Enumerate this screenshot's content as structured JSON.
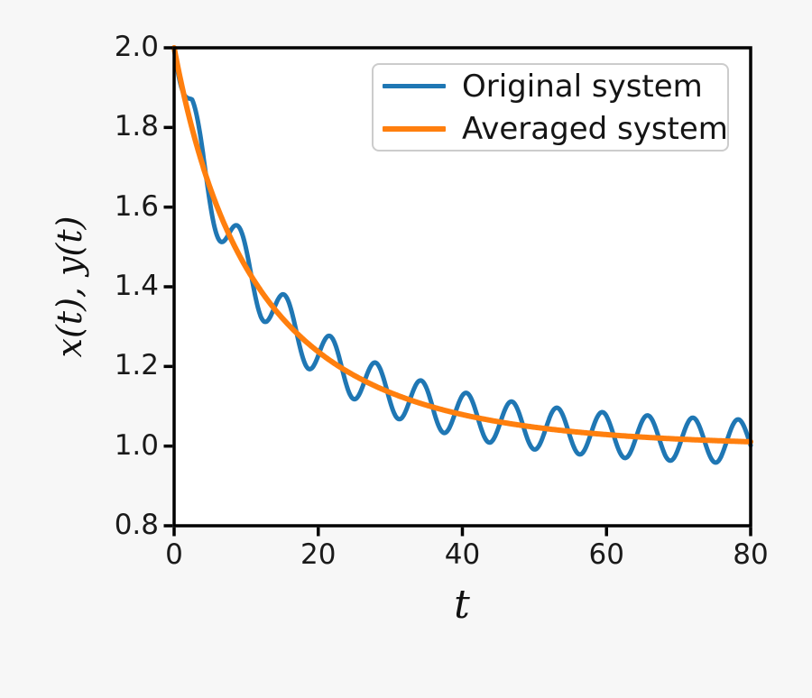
{
  "figure": {
    "background_color": "#f7f7f7",
    "plot_background_color": "#ffffff",
    "axis_color": "#000000",
    "tick_label_color": "#1a1a1a"
  },
  "chart_data": {
    "type": "line",
    "title": "",
    "xlabel": "t",
    "ylabel": "x(t), y(t)",
    "xlim": [
      0,
      80
    ],
    "ylim": [
      0.8,
      2.0
    ],
    "xticks": [
      "0",
      "20",
      "40",
      "60",
      "80"
    ],
    "yticks": [
      "0.8",
      "1.0",
      "1.2",
      "1.4",
      "1.6",
      "1.8",
      "2.0"
    ],
    "grid": false,
    "legend": {
      "position": "upper right",
      "border_color": "#cccccc",
      "background": "#ffffff"
    },
    "series": [
      {
        "name": "Original system",
        "color": "#1f77b4",
        "line_width": 5,
        "model": {
          "kind": "averaged_plus_oscillation",
          "k": 0.048,
          "amplitude": 0.055,
          "omega": 1.0,
          "phase": 1.3,
          "amp_boost": 0.5,
          "amp_boost_tau": 15,
          "onset_ramp": 2.5
        },
        "sample_t": [
          0,
          5,
          10,
          15,
          20,
          25,
          30,
          35,
          40,
          45,
          50,
          55,
          60,
          65,
          70,
          75,
          80
        ],
        "sample_y": [
          2.0,
          1.608,
          1.494,
          1.381,
          1.228,
          1.117,
          1.11,
          1.147,
          1.127,
          1.045,
          0.992,
          1.021,
          1.075,
          1.065,
          0.995,
          0.959,
          1.002
        ]
      },
      {
        "name": "Averaged system",
        "color": "#ff7f0e",
        "line_width": 6,
        "model": {
          "kind": "averaged",
          "k": 0.048
        },
        "sample_t": [
          0,
          5,
          10,
          15,
          20,
          25,
          30,
          35,
          40,
          45,
          50,
          55,
          60,
          65,
          70,
          75,
          80
        ],
        "sample_y": [
          2.0,
          1.648,
          1.448,
          1.322,
          1.237,
          1.177,
          1.134,
          1.103,
          1.079,
          1.061,
          1.048,
          1.037,
          1.029,
          1.023,
          1.018,
          1.014,
          1.011
        ]
      }
    ]
  }
}
